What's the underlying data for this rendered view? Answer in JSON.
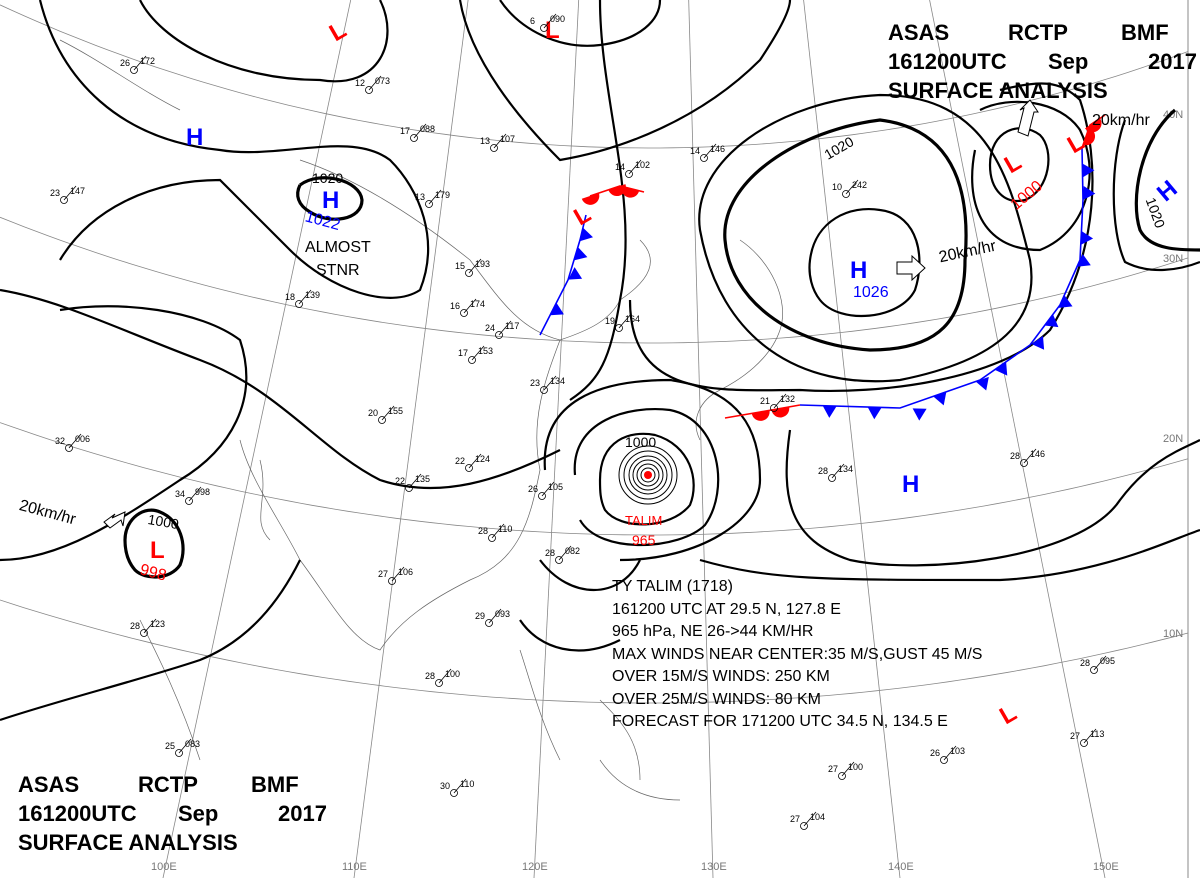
{
  "header": {
    "line1": [
      "ASAS",
      "RCTP",
      "BMF"
    ],
    "line2": [
      "161200UTC",
      "Sep",
      "2017"
    ],
    "line3": "SURFACE ANALYSIS"
  },
  "grid": {
    "longitudes": [
      "100E",
      "110E",
      "120E",
      "130E",
      "140E",
      "150E"
    ],
    "latitudes": [
      "40N",
      "30N",
      "20N",
      "10N"
    ]
  },
  "systems": {
    "highs": [
      {
        "symbol": "H",
        "pressure": "1022"
      },
      {
        "symbol": "H",
        "pressure": "1026"
      },
      {
        "symbol": "H",
        "pressure": ""
      },
      {
        "symbol": "H",
        "pressure": ""
      },
      {
        "symbol": "H",
        "pressure": ""
      }
    ],
    "lows": [
      {
        "symbol": "L",
        "pressure": "1000"
      },
      {
        "symbol": "L",
        "pressure": "998"
      },
      {
        "symbol": "L",
        "pressure": ""
      },
      {
        "symbol": "L",
        "pressure": ""
      },
      {
        "symbol": "L",
        "pressure": ""
      },
      {
        "symbol": "L",
        "pressure": ""
      }
    ],
    "typhoon_name": "TALIM",
    "typhoon_pressure": "965",
    "notes": {
      "stationary": [
        "ALMOST",
        "STNR"
      ],
      "motion_high": "20km/hr",
      "motion_low_west": "20km/hr",
      "motion_low_ne": "20km/hr"
    }
  },
  "isobar_labels": [
    "1020",
    "1020",
    "1020",
    "1000",
    "1000"
  ],
  "typhoon_info": {
    "line1": "TY  TALIM  (1718)",
    "line2": "161200 UTC  AT 29.5 N, 127.8 E",
    "line3": "965 hPa, NE  26->44 KM/HR",
    "line4": "MAX WINDS NEAR CENTER:35 M/S,GUST 45 M/S",
    "line5": "OVER 15M/S WINDS: 250 KM",
    "line6": "OVER 25M/S WINDS: 80 KM",
    "line7": "FORECAST FOR 171200 UTC 34.5 N, 134.5 E"
  },
  "stations": [
    {
      "t": "26",
      "p": "172"
    },
    {
      "t": "12",
      "p": "073"
    },
    {
      "t": "17",
      "p": "088"
    },
    {
      "t": "13",
      "p": "107"
    },
    {
      "t": "6",
      "p": "090"
    },
    {
      "t": "14",
      "p": "102"
    },
    {
      "t": "14",
      "p": "146"
    },
    {
      "t": "10",
      "p": "242"
    },
    {
      "t": "13",
      "p": "179"
    },
    {
      "t": "15",
      "p": "193"
    },
    {
      "t": "16",
      "p": "174"
    },
    {
      "t": "17",
      "p": "153"
    },
    {
      "t": "24",
      "p": "117"
    },
    {
      "t": "19",
      "p": "164"
    },
    {
      "t": "23",
      "p": "134"
    },
    {
      "t": "20",
      "p": "155"
    },
    {
      "t": "22",
      "p": "124"
    },
    {
      "t": "22",
      "p": "135"
    },
    {
      "t": "26",
      "p": "105"
    },
    {
      "t": "28",
      "p": "110"
    },
    {
      "t": "27",
      "p": "106"
    },
    {
      "t": "28",
      "p": "082"
    },
    {
      "t": "29",
      "p": "093"
    },
    {
      "t": "28",
      "p": "100"
    },
    {
      "t": "28",
      "p": "134"
    },
    {
      "t": "28",
      "p": "146"
    },
    {
      "t": "26",
      "p": "103"
    },
    {
      "t": "28",
      "p": "095"
    },
    {
      "t": "27",
      "p": "113"
    },
    {
      "t": "27",
      "p": "100"
    },
    {
      "t": "27",
      "p": "104"
    },
    {
      "t": "30",
      "p": "110"
    },
    {
      "t": "25",
      "p": "083"
    },
    {
      "t": "32",
      "p": "006"
    },
    {
      "t": "34",
      "p": "998"
    },
    {
      "t": "28",
      "p": "123"
    },
    {
      "t": "21",
      "p": "132"
    },
    {
      "t": "18",
      "p": "139"
    },
    {
      "t": "23",
      "p": "147"
    }
  ],
  "colors": {
    "high": "#0000ff",
    "low": "#ff0000",
    "cold_front": "#0000ff",
    "warm_front": "#ff0000",
    "isobar": "#000000"
  }
}
